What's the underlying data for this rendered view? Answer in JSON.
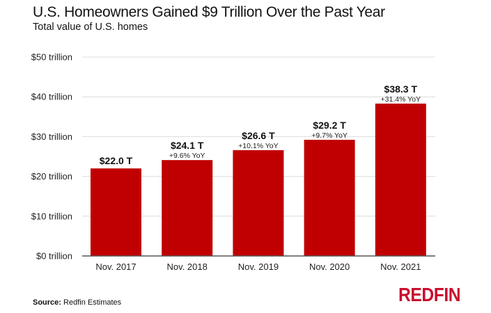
{
  "chart_data": {
    "type": "bar",
    "title": "U.S. Homeowners Gained $9 Trillion Over the Past Year",
    "subtitle": "Total value of U.S. homes",
    "xlabel": "",
    "ylabel": "",
    "ylim": [
      0,
      50
    ],
    "yticks": [
      0,
      10,
      20,
      30,
      40,
      50
    ],
    "ytick_labels": [
      "$0 trillion",
      "$10 trillion",
      "$20 trillion",
      "$30 trillion",
      "$40 trillion",
      "$50 trillion"
    ],
    "grid": true,
    "categories": [
      "Nov. 2017",
      "Nov. 2018",
      "Nov. 2019",
      "Nov. 2020",
      "Nov. 2021"
    ],
    "values": [
      22.0,
      24.1,
      26.6,
      29.2,
      38.3
    ],
    "value_labels": [
      "$22.0 T",
      "$24.1 T",
      "$26.6 T",
      "$29.2 T",
      "$38.3 T"
    ],
    "yoy_labels": [
      "",
      "+9.6% YoY",
      "+10.1% YoY",
      "+9.7% YoY",
      "+31.4% YoY"
    ],
    "bar_color": "#c00000",
    "legend": "none"
  },
  "footer": {
    "source_label": "Source:",
    "source_text": " Redfin Estimates",
    "logo_text": "REDFIN",
    "logo_color": "#c8102e"
  }
}
